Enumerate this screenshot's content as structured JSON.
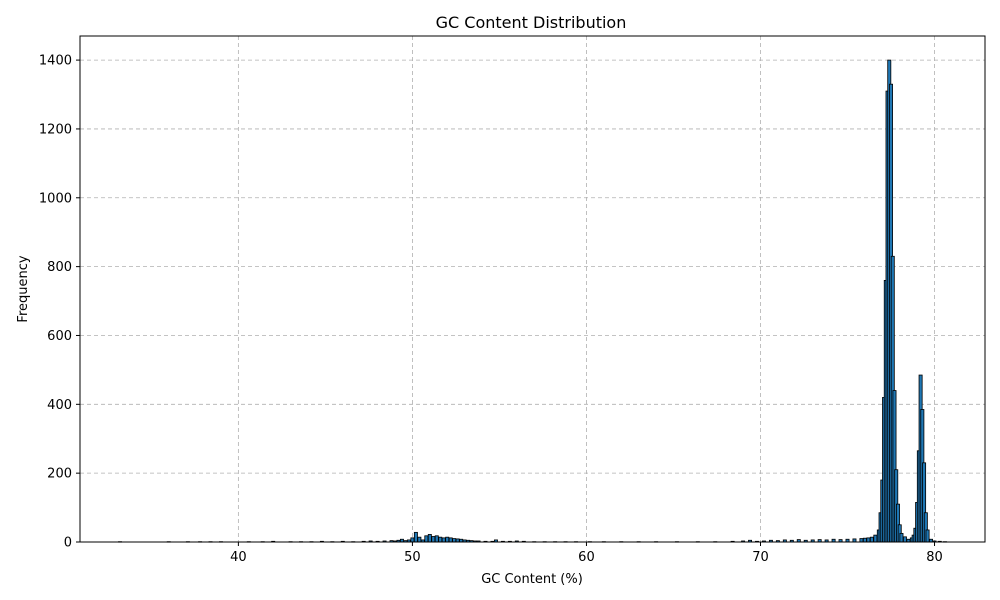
{
  "chart_data": {
    "type": "bar",
    "title": "GC Content Distribution",
    "xlabel": "GC Content (%)",
    "ylabel": "Frequency",
    "xlim": [
      30.9,
      82.9
    ],
    "ylim": [
      0,
      1470
    ],
    "xticks": [
      40,
      50,
      60,
      70,
      80
    ],
    "yticks": [
      0,
      200,
      400,
      600,
      800,
      1000,
      1200,
      1400
    ],
    "grid": true,
    "bin_width": 0.18,
    "bar_color": "#1f77b4",
    "edge_color": "#000000",
    "bins": [
      {
        "x": 33.2,
        "y": 1
      },
      {
        "x": 36.0,
        "y": 1
      },
      {
        "x": 37.1,
        "y": 1
      },
      {
        "x": 37.8,
        "y": 1
      },
      {
        "x": 38.4,
        "y": 1
      },
      {
        "x": 39.0,
        "y": 1
      },
      {
        "x": 40.6,
        "y": 1
      },
      {
        "x": 41.4,
        "y": 1
      },
      {
        "x": 42.0,
        "y": 2
      },
      {
        "x": 43.0,
        "y": 1
      },
      {
        "x": 43.6,
        "y": 1
      },
      {
        "x": 44.2,
        "y": 1
      },
      {
        "x": 44.8,
        "y": 2
      },
      {
        "x": 45.4,
        "y": 1
      },
      {
        "x": 46.0,
        "y": 2
      },
      {
        "x": 46.6,
        "y": 1
      },
      {
        "x": 47.2,
        "y": 2
      },
      {
        "x": 47.6,
        "y": 3
      },
      {
        "x": 48.0,
        "y": 2
      },
      {
        "x": 48.4,
        "y": 3
      },
      {
        "x": 48.8,
        "y": 4
      },
      {
        "x": 49.0,
        "y": 3
      },
      {
        "x": 49.2,
        "y": 5
      },
      {
        "x": 49.4,
        "y": 8
      },
      {
        "x": 49.6,
        "y": 4
      },
      {
        "x": 49.8,
        "y": 6
      },
      {
        "x": 50.0,
        "y": 12
      },
      {
        "x": 50.2,
        "y": 28
      },
      {
        "x": 50.4,
        "y": 14
      },
      {
        "x": 50.6,
        "y": 6
      },
      {
        "x": 50.8,
        "y": 18
      },
      {
        "x": 51.0,
        "y": 22
      },
      {
        "x": 51.2,
        "y": 16
      },
      {
        "x": 51.4,
        "y": 18
      },
      {
        "x": 51.6,
        "y": 14
      },
      {
        "x": 51.8,
        "y": 12
      },
      {
        "x": 52.0,
        "y": 14
      },
      {
        "x": 52.2,
        "y": 12
      },
      {
        "x": 52.4,
        "y": 10
      },
      {
        "x": 52.6,
        "y": 9
      },
      {
        "x": 52.8,
        "y": 8
      },
      {
        "x": 53.0,
        "y": 6
      },
      {
        "x": 53.2,
        "y": 5
      },
      {
        "x": 53.4,
        "y": 4
      },
      {
        "x": 53.6,
        "y": 3
      },
      {
        "x": 53.8,
        "y": 3
      },
      {
        "x": 54.2,
        "y": 2
      },
      {
        "x": 54.6,
        "y": 2
      },
      {
        "x": 54.8,
        "y": 6
      },
      {
        "x": 55.2,
        "y": 2
      },
      {
        "x": 55.6,
        "y": 2
      },
      {
        "x": 56.0,
        "y": 3
      },
      {
        "x": 56.4,
        "y": 2
      },
      {
        "x": 57.0,
        "y": 1
      },
      {
        "x": 57.6,
        "y": 1
      },
      {
        "x": 58.2,
        "y": 1
      },
      {
        "x": 58.8,
        "y": 1
      },
      {
        "x": 59.4,
        "y": 1
      },
      {
        "x": 60.2,
        "y": 1
      },
      {
        "x": 61.0,
        "y": 1
      },
      {
        "x": 62.0,
        "y": 1
      },
      {
        "x": 63.0,
        "y": 1
      },
      {
        "x": 64.0,
        "y": 1
      },
      {
        "x": 65.2,
        "y": 1
      },
      {
        "x": 66.4,
        "y": 1
      },
      {
        "x": 67.4,
        "y": 1
      },
      {
        "x": 68.4,
        "y": 2
      },
      {
        "x": 69.0,
        "y": 3
      },
      {
        "x": 69.4,
        "y": 5
      },
      {
        "x": 69.8,
        "y": 2
      },
      {
        "x": 70.2,
        "y": 3
      },
      {
        "x": 70.6,
        "y": 5
      },
      {
        "x": 71.0,
        "y": 4
      },
      {
        "x": 71.4,
        "y": 6
      },
      {
        "x": 71.8,
        "y": 5
      },
      {
        "x": 72.2,
        "y": 7
      },
      {
        "x": 72.6,
        "y": 5
      },
      {
        "x": 73.0,
        "y": 6
      },
      {
        "x": 73.4,
        "y": 7
      },
      {
        "x": 73.8,
        "y": 6
      },
      {
        "x": 74.2,
        "y": 8
      },
      {
        "x": 74.6,
        "y": 7
      },
      {
        "x": 75.0,
        "y": 8
      },
      {
        "x": 75.4,
        "y": 9
      },
      {
        "x": 75.8,
        "y": 10
      },
      {
        "x": 76.0,
        "y": 11
      },
      {
        "x": 76.2,
        "y": 12
      },
      {
        "x": 76.4,
        "y": 14
      },
      {
        "x": 76.6,
        "y": 20
      },
      {
        "x": 76.8,
        "y": 35
      },
      {
        "x": 76.9,
        "y": 85
      },
      {
        "x": 77.0,
        "y": 180
      },
      {
        "x": 77.1,
        "y": 420
      },
      {
        "x": 77.2,
        "y": 760
      },
      {
        "x": 77.3,
        "y": 1310
      },
      {
        "x": 77.4,
        "y": 1400
      },
      {
        "x": 77.5,
        "y": 1330
      },
      {
        "x": 77.6,
        "y": 830
      },
      {
        "x": 77.7,
        "y": 440
      },
      {
        "x": 77.8,
        "y": 210
      },
      {
        "x": 77.9,
        "y": 110
      },
      {
        "x": 78.0,
        "y": 50
      },
      {
        "x": 78.1,
        "y": 25
      },
      {
        "x": 78.3,
        "y": 15
      },
      {
        "x": 78.5,
        "y": 8
      },
      {
        "x": 78.7,
        "y": 12
      },
      {
        "x": 78.8,
        "y": 20
      },
      {
        "x": 78.9,
        "y": 40
      },
      {
        "x": 79.0,
        "y": 115
      },
      {
        "x": 79.1,
        "y": 265
      },
      {
        "x": 79.2,
        "y": 485
      },
      {
        "x": 79.3,
        "y": 385
      },
      {
        "x": 79.4,
        "y": 230
      },
      {
        "x": 79.5,
        "y": 85
      },
      {
        "x": 79.6,
        "y": 35
      },
      {
        "x": 79.8,
        "y": 8
      },
      {
        "x": 80.0,
        "y": 3
      },
      {
        "x": 80.3,
        "y": 2
      },
      {
        "x": 80.6,
        "y": 1
      }
    ]
  }
}
